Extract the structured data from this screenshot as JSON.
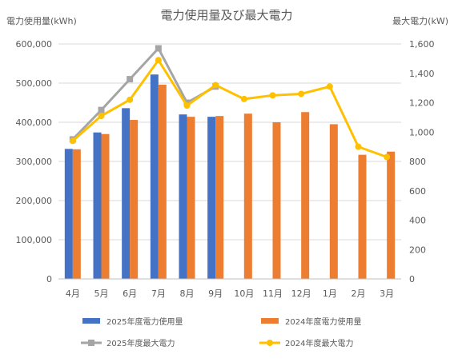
{
  "chart_data": {
    "type": "bar",
    "title": "電力使用量及び最大電力",
    "ylabel_left": "電力使用量(kWh)",
    "ylabel_right": "最大電力(kW)",
    "categories": [
      "4月",
      "5月",
      "6月",
      "7月",
      "8月",
      "9月",
      "10月",
      "11月",
      "12月",
      "1月",
      "2月",
      "3月"
    ],
    "y_left": {
      "min": 0,
      "max": 600000,
      "ticks": [
        "0",
        "100,000",
        "200,000",
        "300,000",
        "400,000",
        "500,000",
        "600,000"
      ]
    },
    "y_right": {
      "min": 0,
      "max": 1600,
      "ticks": [
        "0",
        "200",
        "400",
        "600",
        "800",
        "1,000",
        "1,200",
        "1,400",
        "1,600"
      ]
    },
    "bar_series": [
      {
        "name": "2025年度電力使用量",
        "color": "#4472C4",
        "values": [
          332000,
          374000,
          436000,
          522000,
          420000,
          414000,
          null,
          null,
          null,
          null,
          null,
          null
        ]
      },
      {
        "name": "2024年度電力使用量",
        "color": "#ED7D31",
        "values": [
          331000,
          370000,
          406000,
          496000,
          414000,
          416000,
          422000,
          400000,
          426000,
          395000,
          317000,
          325000
        ]
      }
    ],
    "line_series": [
      {
        "name": "2025年度最大電力",
        "color": "#A5A5A5",
        "marker": "square",
        "values": [
          950,
          1150,
          1360,
          1570,
          1200,
          1310,
          null,
          null,
          null,
          null,
          null,
          null
        ]
      },
      {
        "name": "2024年度最大電力",
        "color": "#FFC000",
        "marker": "circle",
        "values": [
          940,
          1110,
          1220,
          1490,
          1180,
          1320,
          1225,
          1250,
          1260,
          1310,
          900,
          830
        ]
      }
    ],
    "grid": true,
    "legend_position": "bottom"
  }
}
